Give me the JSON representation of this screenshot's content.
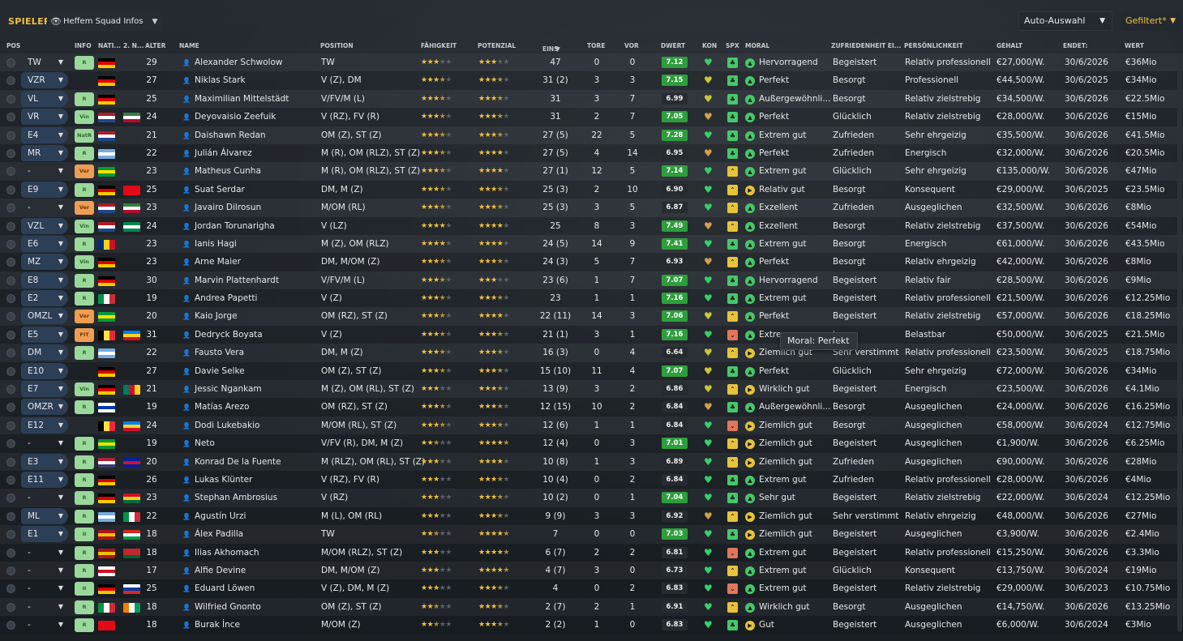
{
  "header": {
    "title": "SPIELER",
    "view": "Heffem Squad Infos",
    "auto": "Auto-Auswahl",
    "filter": "Gefiltert*"
  },
  "colors": {
    "accent": "#f0c040",
    "high_rating": "#2e9e3c"
  },
  "columns": {
    "pos": "POS",
    "info": "INFO",
    "nat": "NATI...",
    "nat2": "2. N...",
    "age": "ALTER",
    "name": "NAME",
    "position": "POSITION",
    "abi": "FÄHIGKEIT",
    "pot": "POTENZIAL",
    "apps": "EINS",
    "gls": "TORE",
    "ast": "VOR",
    "dwert": "DWERT",
    "kon": "KON",
    "spx": "SPX",
    "moral": "MORAL",
    "zuf": "ZUFRIEDENHEIT EI...",
    "pers": "PERSÖNLICHKEIT",
    "gehalt": "GEHALT",
    "ende": "ENDET:",
    "wert": "WERT"
  },
  "tooltip": "Moral: Perfekt",
  "players": [
    {
      "pos": "TW",
      "info": "R",
      "age": "29",
      "name": "Alexander Schwolow",
      "position": "TW",
      "apps": "47",
      "gls": "0",
      "ast": "0",
      "dwert": "7.12",
      "moral": "Hervorragend",
      "zuf": "Begeistert",
      "pers": "Relativ professionell",
      "gehalt": "€27,000/W.",
      "ende": "30/6/2026",
      "wert": "€36Mio"
    },
    {
      "pos": "VZR",
      "info": "",
      "age": "27",
      "name": "Niklas Stark",
      "position": "V (Z), DM",
      "apps": "31 (2)",
      "gls": "3",
      "ast": "3",
      "dwert": "7.15",
      "moral": "Perfekt",
      "zuf": "Besorgt",
      "pers": "Professionell",
      "gehalt": "€44,500/W.",
      "ende": "30/6/2025",
      "wert": "€34Mio"
    },
    {
      "pos": "VL",
      "info": "R",
      "age": "25",
      "name": "Maximilian Mittelstädt",
      "position": "V/FV/M (L)",
      "apps": "31",
      "gls": "3",
      "ast": "7",
      "dwert": "6.99",
      "moral": "Außergewöhnli...",
      "zuf": "Besorgt",
      "pers": "Relativ zielstrebig",
      "gehalt": "€34,500/W.",
      "ende": "30/6/2026",
      "wert": "€22.5Mio"
    },
    {
      "pos": "VR",
      "info": "Vin",
      "age": "24",
      "name": "Deyovaisio Zeefuik",
      "position": "V (RZ), FV (R)",
      "apps": "31",
      "gls": "2",
      "ast": "7",
      "dwert": "7.05",
      "moral": "Perfekt",
      "zuf": "Glücklich",
      "pers": "Relativ zielstrebig",
      "gehalt": "€28,000/W.",
      "ende": "30/6/2026",
      "wert": "€15Mio"
    },
    {
      "pos": "E4",
      "info": "NatR",
      "age": "21",
      "name": "Daishawn Redan",
      "position": "OM (Z), ST (Z)",
      "apps": "27 (5)",
      "gls": "22",
      "ast": "5",
      "dwert": "7.28",
      "moral": "Extrem gut",
      "zuf": "Zufrieden",
      "pers": "Sehr ehrgeizig",
      "gehalt": "€35,500/W.",
      "ende": "30/6/2026",
      "wert": "€41.5Mio"
    },
    {
      "pos": "MR",
      "info": "R",
      "age": "22",
      "name": "Julián Álvarez",
      "position": "M (R), OM (RLZ), ST (Z)",
      "apps": "27 (5)",
      "gls": "4",
      "ast": "14",
      "dwert": "6.95",
      "moral": "Perfekt",
      "zuf": "Zufrieden",
      "pers": "Energisch",
      "gehalt": "€32,000/W.",
      "ende": "30/6/2026",
      "wert": "€20.5Mio"
    },
    {
      "pos": "-",
      "info": "Ver",
      "age": "23",
      "name": "Matheus Cunha",
      "position": "M (R), OM (RLZ), ST (Z)",
      "apps": "27 (1)",
      "gls": "12",
      "ast": "5",
      "dwert": "7.14",
      "moral": "Extrem gut",
      "zuf": "Glücklich",
      "pers": "Sehr ehrgeizig",
      "gehalt": "€135,000/W.",
      "ende": "30/6/2026",
      "wert": "€47Mio"
    },
    {
      "pos": "E9",
      "info": "R",
      "age": "25",
      "name": "Suat Serdar",
      "position": "DM, M (Z)",
      "apps": "25 (3)",
      "gls": "2",
      "ast": "10",
      "dwert": "6.90",
      "moral": "Relativ gut",
      "zuf": "Besorgt",
      "pers": "Konsequent",
      "gehalt": "€29,000/W.",
      "ende": "30/6/2025",
      "wert": "€23.5Mio"
    },
    {
      "pos": "-",
      "info": "Ver",
      "age": "23",
      "name": "Javairo Dilrosun",
      "position": "M/OM (RL)",
      "apps": "25 (3)",
      "gls": "3",
      "ast": "5",
      "dwert": "6.87",
      "moral": "Exzellent",
      "zuf": "Zufrieden",
      "pers": "Ausgeglichen",
      "gehalt": "€32,500/W.",
      "ende": "30/6/2026",
      "wert": "€8Mio"
    },
    {
      "pos": "VZL",
      "info": "Vin",
      "age": "24",
      "name": "Jordan Torunarigha",
      "position": "V (LZ)",
      "apps": "25",
      "gls": "8",
      "ast": "3",
      "dwert": "7.49",
      "moral": "Exzellent",
      "zuf": "Besorgt",
      "pers": "Relativ zielstrebig",
      "gehalt": "€37,500/W.",
      "ende": "30/6/2026",
      "wert": "€54Mio"
    },
    {
      "pos": "E6",
      "info": "R",
      "age": "23",
      "name": "Ianis Hagi",
      "position": "M (Z), OM (RLZ)",
      "apps": "24 (5)",
      "gls": "14",
      "ast": "9",
      "dwert": "7.41",
      "moral": "Extrem gut",
      "zuf": "Besorgt",
      "pers": "Energisch",
      "gehalt": "€61,000/W.",
      "ende": "30/6/2026",
      "wert": "€43.5Mio"
    },
    {
      "pos": "MZ",
      "info": "Vin",
      "age": "23",
      "name": "Arne Maier",
      "position": "DM, M/OM (Z)",
      "apps": "24 (3)",
      "gls": "5",
      "ast": "7",
      "dwert": "6.93",
      "moral": "Perfekt",
      "zuf": "Besorgt",
      "pers": "Relativ ehrgeizig",
      "gehalt": "€42,000/W.",
      "ende": "30/6/2026",
      "wert": "€8Mio"
    },
    {
      "pos": "E8",
      "info": "R",
      "age": "30",
      "name": "Marvin Plattenhardt",
      "position": "V/FV/M (L)",
      "apps": "23 (6)",
      "gls": "1",
      "ast": "7",
      "dwert": "7.07",
      "moral": "Hervorragend",
      "zuf": "Begeistert",
      "pers": "Relativ fair",
      "gehalt": "€28,500/W.",
      "ende": "30/6/2026",
      "wert": "€9Mio"
    },
    {
      "pos": "E2",
      "info": "R",
      "age": "19",
      "name": "Andrea Papetti",
      "position": "V (Z)",
      "apps": "23",
      "gls": "1",
      "ast": "1",
      "dwert": "7.16",
      "moral": "Extrem gut",
      "zuf": "Begeistert",
      "pers": "Relativ professionell",
      "gehalt": "€21,500/W.",
      "ende": "30/6/2026",
      "wert": "€12.25Mio"
    },
    {
      "pos": "OMZL",
      "info": "Ver",
      "age": "20",
      "name": "Kaio Jorge",
      "position": "OM (RZ), ST (Z)",
      "apps": "22 (11)",
      "gls": "14",
      "ast": "3",
      "dwert": "7.06",
      "moral": "Perfekt",
      "zuf": "Begeistert",
      "pers": "Relativ zielstrebig",
      "gehalt": "€57,000/W.",
      "ende": "30/6/2026",
      "wert": "€18.25Mio"
    },
    {
      "pos": "E5",
      "info": "FIT",
      "age": "31",
      "name": "Dedryck Boyata",
      "position": "V (Z)",
      "apps": "21 (1)",
      "gls": "3",
      "ast": "1",
      "dwert": "7.16",
      "moral": "Extre",
      "zuf": "t",
      "pers": "Belastbar",
      "gehalt": "€50,000/W.",
      "ende": "30/6/2025",
      "wert": "€21.5Mio"
    },
    {
      "pos": "DM",
      "info": "R",
      "age": "22",
      "name": "Fausto Vera",
      "position": "DM, M (Z)",
      "apps": "16 (3)",
      "gls": "0",
      "ast": "4",
      "dwert": "6.64",
      "moral": "Ziemlich gut",
      "zuf": "Sehr verstimmt",
      "pers": "Relativ professionell",
      "gehalt": "€23,500/W.",
      "ende": "30/6/2025",
      "wert": "€18.75Mio"
    },
    {
      "pos": "E10",
      "info": "",
      "age": "27",
      "name": "Davie Selke",
      "position": "OM (Z), ST (Z)",
      "apps": "15 (10)",
      "gls": "11",
      "ast": "4",
      "dwert": "7.07",
      "moral": "Perfekt",
      "zuf": "Glücklich",
      "pers": "Sehr ehrgeizig",
      "gehalt": "€72,000/W.",
      "ende": "30/6/2026",
      "wert": "€34Mio"
    },
    {
      "pos": "E7",
      "info": "Vin",
      "age": "21",
      "name": "Jessic Ngankam",
      "position": "M (Z), OM (RL), ST (Z)",
      "apps": "13 (9)",
      "gls": "3",
      "ast": "2",
      "dwert": "6.86",
      "moral": "Wirklich gut",
      "zuf": "Begeistert",
      "pers": "Energisch",
      "gehalt": "€23,500/W.",
      "ende": "30/6/2026",
      "wert": "€4.1Mio"
    },
    {
      "pos": "OMZR",
      "info": "R",
      "age": "19",
      "name": "Matías Arezo",
      "position": "OM (RZ), ST (Z)",
      "apps": "12 (15)",
      "gls": "10",
      "ast": "2",
      "dwert": "6.84",
      "moral": "Außergewöhnli...",
      "zuf": "Besorgt",
      "pers": "Ausgeglichen",
      "gehalt": "€24,000/W.",
      "ende": "30/6/2026",
      "wert": "€16.25Mio"
    },
    {
      "pos": "E12",
      "info": "",
      "age": "24",
      "name": "Dodi Lukebakio",
      "position": "M/OM (RL), ST (Z)",
      "apps": "12 (6)",
      "gls": "1",
      "ast": "1",
      "dwert": "6.84",
      "moral": "Ziemlich gut",
      "zuf": "Besorgt",
      "pers": "Ausgeglichen",
      "gehalt": "€58,000/W.",
      "ende": "30/6/2024",
      "wert": "€12.75Mio"
    },
    {
      "pos": "-",
      "info": "R",
      "age": "19",
      "name": "Neto",
      "position": "V/FV (R), DM, M (Z)",
      "apps": "12 (4)",
      "gls": "0",
      "ast": "3",
      "dwert": "7.01",
      "moral": "Ziemlich gut",
      "zuf": "Begeistert",
      "pers": "Ausgeglichen",
      "gehalt": "€1,900/W.",
      "ende": "30/6/2026",
      "wert": "€6.25Mio"
    },
    {
      "pos": "E3",
      "info": "R",
      "age": "20",
      "name": "Konrad De la Fuente",
      "position": "M (RLZ), OM (RL), ST (Z)",
      "apps": "10 (8)",
      "gls": "1",
      "ast": "3",
      "dwert": "6.89",
      "moral": "Ziemlich gut",
      "zuf": "Zufrieden",
      "pers": "Ausgeglichen",
      "gehalt": "€90,000/W.",
      "ende": "30/6/2026",
      "wert": "€28Mio"
    },
    {
      "pos": "E11",
      "info": "R",
      "age": "26",
      "name": "Lukas Klünter",
      "position": "V (RZ), FV (R)",
      "apps": "10 (4)",
      "gls": "0",
      "ast": "2",
      "dwert": "6.84",
      "moral": "Extrem gut",
      "zuf": "Zufrieden",
      "pers": "Relativ professionell",
      "gehalt": "€28,000/W.",
      "ende": "30/6/2026",
      "wert": "€4Mio"
    },
    {
      "pos": "-",
      "info": "R",
      "age": "23",
      "name": "Stephan Ambrosius",
      "position": "V (RZ)",
      "apps": "10 (2)",
      "gls": "0",
      "ast": "1",
      "dwert": "7.04",
      "moral": "Sehr gut",
      "zuf": "Begeistert",
      "pers": "Relativ zielstrebig",
      "gehalt": "€22,000/W.",
      "ende": "30/6/2024",
      "wert": "€12.25Mio"
    },
    {
      "pos": "ML",
      "info": "R",
      "age": "22",
      "name": "Agustín Urzi",
      "position": "M (L), OM (RL)",
      "apps": "9 (9)",
      "gls": "3",
      "ast": "3",
      "dwert": "6.92",
      "moral": "Ziemlich gut",
      "zuf": "Sehr verstimmt",
      "pers": "Relativ ehrgeizig",
      "gehalt": "€48,000/W.",
      "ende": "30/6/2026",
      "wert": "€27Mio"
    },
    {
      "pos": "E1",
      "info": "II",
      "age": "18",
      "name": "Álex Padilla",
      "position": "TW",
      "apps": "7",
      "gls": "0",
      "ast": "0",
      "dwert": "7.03",
      "moral": "Ziemlich gut",
      "zuf": "Begeistert",
      "pers": "Ausgeglichen",
      "gehalt": "€3,900/W.",
      "ende": "30/6/2026",
      "wert": "€2.4Mio"
    },
    {
      "pos": "-",
      "info": "R",
      "age": "18",
      "name": "Ilias Akhomach",
      "position": "M/OM (RLZ), ST (Z)",
      "apps": "6 (7)",
      "gls": "2",
      "ast": "2",
      "dwert": "6.81",
      "moral": "Extrem gut",
      "zuf": "Begeistert",
      "pers": "Relativ professionell",
      "gehalt": "€15,250/W.",
      "ende": "30/6/2026",
      "wert": "€3.3Mio"
    },
    {
      "pos": "-",
      "info": "R",
      "age": "17",
      "name": "Alfie Devine",
      "position": "DM, M/OM (Z)",
      "apps": "4 (7)",
      "gls": "3",
      "ast": "0",
      "dwert": "6.73",
      "moral": "Extrem gut",
      "zuf": "Glücklich",
      "pers": "Konsequent",
      "gehalt": "€13,750/W.",
      "ende": "30/6/2024",
      "wert": "€19Mio"
    },
    {
      "pos": "-",
      "info": "II",
      "age": "25",
      "name": "Eduard Löwen",
      "position": "V (Z), DM, M (Z)",
      "apps": "4",
      "gls": "0",
      "ast": "2",
      "dwert": "6.83",
      "moral": "Extrem gut",
      "zuf": "Begeistert",
      "pers": "Relativ zielstrebig",
      "gehalt": "€29,000/W.",
      "ende": "30/6/2023",
      "wert": "€10.75Mio"
    },
    {
      "pos": "-",
      "info": "R",
      "age": "18",
      "name": "Wilfried Gnonto",
      "position": "OM (Z), ST (Z)",
      "apps": "2 (7)",
      "gls": "2",
      "ast": "1",
      "dwert": "6.91",
      "moral": "Wirklich gut",
      "zuf": "Besorgt",
      "pers": "Ausgeglichen",
      "gehalt": "€14,750/W.",
      "ende": "30/6/2026",
      "wert": "€13.25Mio"
    },
    {
      "pos": "-",
      "info": "R",
      "age": "18",
      "name": "Burak İnce",
      "position": "M/OM (Z)",
      "apps": "2 (2)",
      "gls": "1",
      "ast": "0",
      "dwert": "6.83",
      "moral": "Gut",
      "zuf": "Begeistert",
      "pers": "Ausgeglichen",
      "gehalt": "€6,000/W.",
      "ende": "30/6/2024",
      "wert": "€3Mio"
    }
  ]
}
